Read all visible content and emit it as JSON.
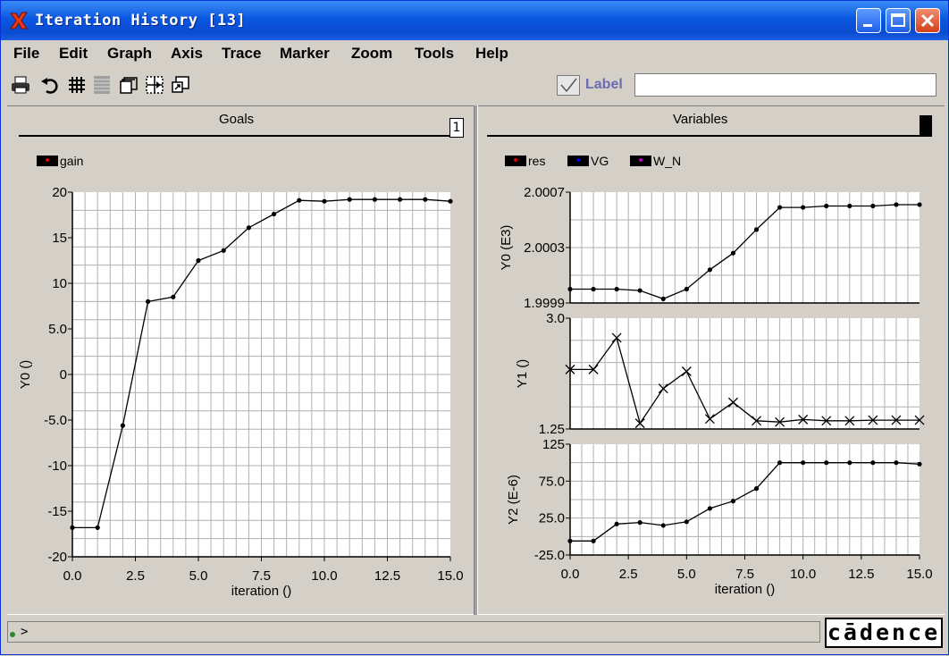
{
  "window": {
    "title": "Iteration History [13]"
  },
  "menu": [
    "File",
    "Edit",
    "Graph",
    "Axis",
    "Trace",
    "Marker",
    "Zoom",
    "Tools",
    "Help"
  ],
  "toolbar": {
    "icons": [
      "printer-icon",
      "undo-icon",
      "grid-icon",
      "stripes-icon",
      "cards-icon",
      "select-icon",
      "zoom-icon"
    ],
    "label_text": "Label",
    "label_value": ""
  },
  "panels": {
    "goals": {
      "header": "Goals",
      "count": "1",
      "legend": [
        {
          "name": "gain",
          "color": "#e00000"
        }
      ]
    },
    "variables": {
      "header": "Variables",
      "legend": [
        {
          "name": "res",
          "color": "#e00000"
        },
        {
          "name": "VG",
          "color": "#0000e0"
        },
        {
          "name": "W_N",
          "color": "#c000c0"
        }
      ]
    }
  },
  "status": {
    "prompt": ">"
  },
  "logo": "cādence",
  "chart_data": [
    {
      "type": "line",
      "title": "Goals",
      "xlabel": "iteration ()",
      "ylabel": "Y0 ()",
      "xlim": [
        0,
        15
      ],
      "ylim": [
        -20,
        20
      ],
      "xticks": [
        "0.0",
        "2.5",
        "5.0",
        "7.5",
        "10.0",
        "12.5",
        "15.0"
      ],
      "yticks": [
        "20",
        "15",
        "10",
        "5.0",
        "0",
        "-5.0",
        "-10",
        "-15",
        "-20"
      ],
      "grid": true,
      "legend": "top-left",
      "series": [
        {
          "name": "gain",
          "marker": "dot",
          "x": [
            0,
            1,
            2,
            3,
            4,
            5,
            6,
            7,
            8,
            9,
            10,
            11,
            12,
            13,
            14,
            15
          ],
          "values": [
            -16.8,
            -16.8,
            -5.6,
            8.0,
            8.5,
            12.5,
            13.6,
            16.1,
            17.6,
            19.1,
            19.0,
            19.2,
            19.2,
            19.2,
            19.2,
            19.0
          ]
        }
      ]
    },
    {
      "type": "line",
      "title": "res",
      "xlabel": "",
      "ylabel": "Y0 (E3)",
      "xlim": [
        0,
        15
      ],
      "ylim": [
        1.9999,
        2.0007
      ],
      "xticks": [],
      "yticks": [
        "2.0007",
        "2.0003",
        "1.9999"
      ],
      "grid": true,
      "series": [
        {
          "name": "res",
          "marker": "dot",
          "x": [
            0,
            1,
            2,
            3,
            4,
            5,
            6,
            7,
            8,
            9,
            10,
            11,
            12,
            13,
            14,
            15
          ],
          "values": [
            2.0,
            2.0,
            2.0,
            1.99999,
            1.99993,
            2.0,
            2.00014,
            2.00026,
            2.00043,
            2.00059,
            2.00059,
            2.0006,
            2.0006,
            2.0006,
            2.00061,
            2.00061
          ]
        }
      ]
    },
    {
      "type": "line",
      "title": "VG",
      "xlabel": "",
      "ylabel": "Y1 ()",
      "xlim": [
        0,
        15
      ],
      "ylim": [
        1.25,
        3.0
      ],
      "xticks": [],
      "yticks": [
        "3.0",
        "1.25"
      ],
      "grid": true,
      "series": [
        {
          "name": "VG",
          "marker": "x",
          "x": [
            0,
            1,
            2,
            3,
            4,
            5,
            6,
            7,
            8,
            9,
            10,
            11,
            12,
            13,
            14,
            15
          ],
          "values": [
            2.19,
            2.19,
            2.69,
            1.34,
            1.89,
            2.16,
            1.41,
            1.67,
            1.38,
            1.36,
            1.4,
            1.38,
            1.38,
            1.39,
            1.39,
            1.39
          ]
        }
      ]
    },
    {
      "type": "line",
      "title": "W_N",
      "xlabel": "iteration ()",
      "ylabel": "Y2 (E-6)",
      "xlim": [
        0,
        15
      ],
      "ylim": [
        -25,
        125
      ],
      "xticks": [
        "0.0",
        "2.5",
        "5.0",
        "7.5",
        "10.0",
        "12.5",
        "15.0"
      ],
      "yticks": [
        "125",
        "75.0",
        "25.0",
        "-25.0"
      ],
      "grid": true,
      "series": [
        {
          "name": "W_N",
          "marker": "dot",
          "x": [
            0,
            1,
            2,
            3,
            4,
            5,
            6,
            7,
            8,
            9,
            10,
            11,
            12,
            13,
            14,
            15
          ],
          "values": [
            -6,
            -6,
            17,
            19,
            15,
            20,
            38,
            48,
            65,
            100,
            100,
            100,
            100,
            100,
            100,
            98
          ]
        }
      ]
    }
  ]
}
